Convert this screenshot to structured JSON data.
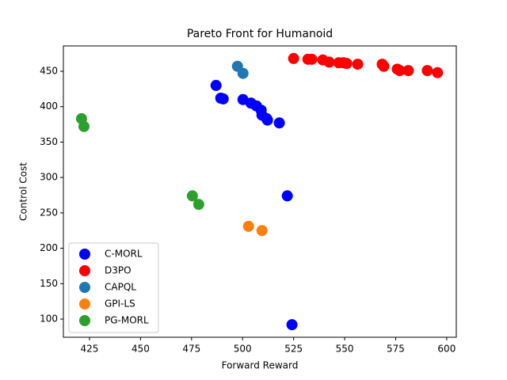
{
  "chart_data": {
    "type": "scatter",
    "title": "Pareto Front for Humanoid",
    "x_label": "Forward Reward",
    "y_label": "Control Cost",
    "xlim": [
      412.2,
      604.7
    ],
    "ylim": [
      74.3,
      485.8
    ],
    "xticks": [
      425,
      450,
      475,
      500,
      525,
      550,
      575,
      600
    ],
    "yticks": [
      100,
      150,
      200,
      250,
      300,
      350,
      400,
      450
    ],
    "legend": "lower left",
    "series": [
      {
        "name": "C-MORL",
        "color": "#0000ff",
        "x": [
          487.0,
          489.3,
          490.5,
          500.2,
          504.1,
          506.8,
          509.1,
          509.5,
          511.8,
          512.2,
          518.0,
          521.9,
          524.2
        ],
        "values": [
          430,
          412,
          411,
          410,
          405,
          401,
          395,
          388,
          383,
          381,
          377,
          274,
          92
        ]
      },
      {
        "name": "D3PO",
        "color": "#ff0000",
        "x": [
          525.0,
          532.0,
          533.9,
          539.3,
          542.4,
          547.1,
          549.4,
          551.0,
          556.4,
          568.4,
          569.2,
          575.8,
          577.0,
          581.2,
          590.5,
          595.5
        ],
        "values": [
          468,
          467,
          467,
          466,
          463,
          462,
          462,
          461,
          460,
          460,
          457,
          453,
          451,
          451,
          451,
          448
        ]
      },
      {
        "name": "CAPQL",
        "color": "#1f77b4",
        "x": [
          497.5,
          500.2
        ],
        "values": [
          457,
          447
        ]
      },
      {
        "name": "GPI-LS",
        "color": "#ff7f0e",
        "x": [
          502.9,
          509.5
        ],
        "values": [
          231,
          225
        ]
      },
      {
        "name": "PG-MORL",
        "color": "#2ca02c",
        "x": [
          421.1,
          422.3,
          475.4,
          478.5
        ],
        "values": [
          383,
          372,
          274,
          262
        ]
      }
    ]
  }
}
